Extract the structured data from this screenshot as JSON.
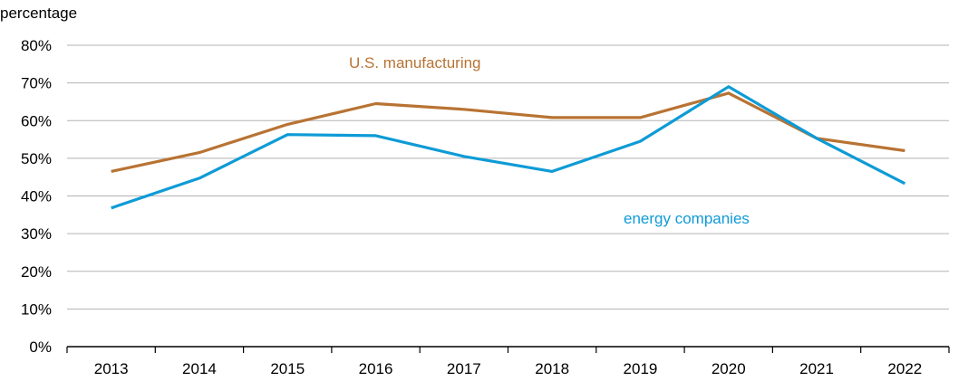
{
  "chart_data": {
    "type": "line",
    "title": "",
    "ylabel": "percentage",
    "xlabel": "",
    "categories": [
      "2013",
      "2014",
      "2015",
      "2016",
      "2017",
      "2018",
      "2019",
      "2020",
      "2021",
      "2022"
    ],
    "ylim": [
      0,
      80
    ],
    "yticks": [
      0,
      10,
      20,
      30,
      40,
      50,
      60,
      70,
      80
    ],
    "ytick_labels": [
      "0%",
      "10%",
      "20%",
      "30%",
      "40%",
      "50%",
      "60%",
      "70%",
      "80%"
    ],
    "grid": true,
    "series": [
      {
        "name": "U.S. manufacturing",
        "color": "#B87333",
        "values": [
          46.5,
          51.5,
          59,
          64.5,
          63,
          60.8,
          60.8,
          67.3,
          55.3,
          52
        ]
      },
      {
        "name": "energy companies",
        "color": "#0E9BD6",
        "values": [
          36.8,
          44.7,
          56.3,
          56,
          50.5,
          46.5,
          54.5,
          69,
          55.3,
          43.3
        ]
      }
    ]
  }
}
